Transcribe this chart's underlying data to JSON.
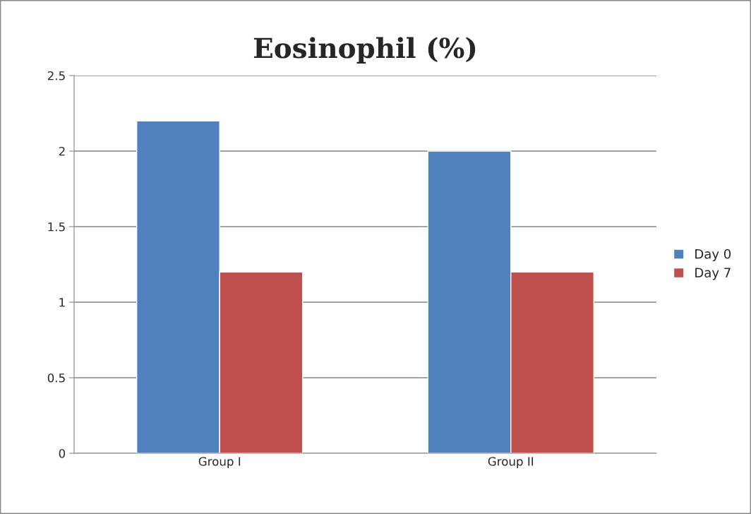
{
  "chart_data": {
    "type": "bar",
    "title": "Eosinophil (%)",
    "categories": [
      "Group I",
      "Group II"
    ],
    "series": [
      {
        "name": "Day 0",
        "color": "#4f81bd",
        "values": [
          2.2,
          2.0
        ]
      },
      {
        "name": "Day 7",
        "color": "#c0504d",
        "values": [
          1.2,
          1.2
        ]
      }
    ],
    "ylim": [
      0,
      2.5
    ],
    "yticks": [
      0,
      0.5,
      1,
      1.5,
      2,
      2.5
    ],
    "grid": "y",
    "legend": "right"
  }
}
